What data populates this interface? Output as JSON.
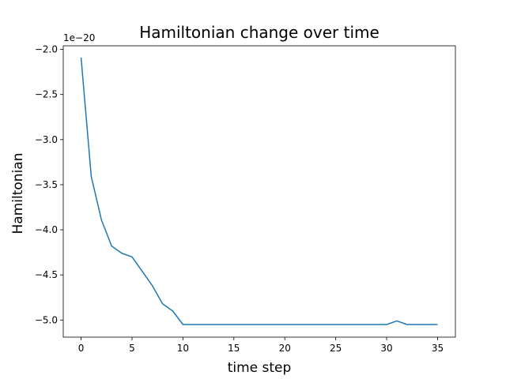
{
  "chart_data": {
    "type": "line",
    "title": "Hamiltonian change over time",
    "xlabel": "time step",
    "ylabel": "Hamiltonian",
    "offset_text": "1e−20",
    "xlim": [
      -1.75,
      36.75
    ],
    "ylim": [
      -5.19,
      -1.96
    ],
    "xticks": [
      0,
      5,
      10,
      15,
      20,
      25,
      30,
      35
    ],
    "yticks": [
      -2.0,
      -2.5,
      -3.0,
      -3.5,
      -4.0,
      -4.5,
      -5.0
    ],
    "grid": false,
    "series": [
      {
        "color": "#1f77b4",
        "x": [
          0,
          1,
          2,
          3,
          4,
          5,
          6,
          7,
          8,
          9,
          10,
          11,
          12,
          13,
          14,
          15,
          16,
          17,
          18,
          19,
          20,
          21,
          22,
          23,
          24,
          25,
          26,
          27,
          28,
          29,
          30,
          31,
          32,
          33,
          34,
          35
        ],
        "y": [
          -2.09,
          -3.41,
          -3.89,
          -4.18,
          -4.26,
          -4.3,
          -4.46,
          -4.62,
          -4.82,
          -4.9,
          -5.05,
          -5.05,
          -5.05,
          -5.05,
          -5.05,
          -5.05,
          -5.05,
          -5.05,
          -5.05,
          -5.05,
          -5.05,
          -5.05,
          -5.05,
          -5.05,
          -5.05,
          -5.05,
          -5.05,
          -5.05,
          -5.05,
          -5.05,
          -5.05,
          -5.01,
          -5.05,
          -5.05,
          -5.05,
          -5.05
        ]
      }
    ]
  }
}
